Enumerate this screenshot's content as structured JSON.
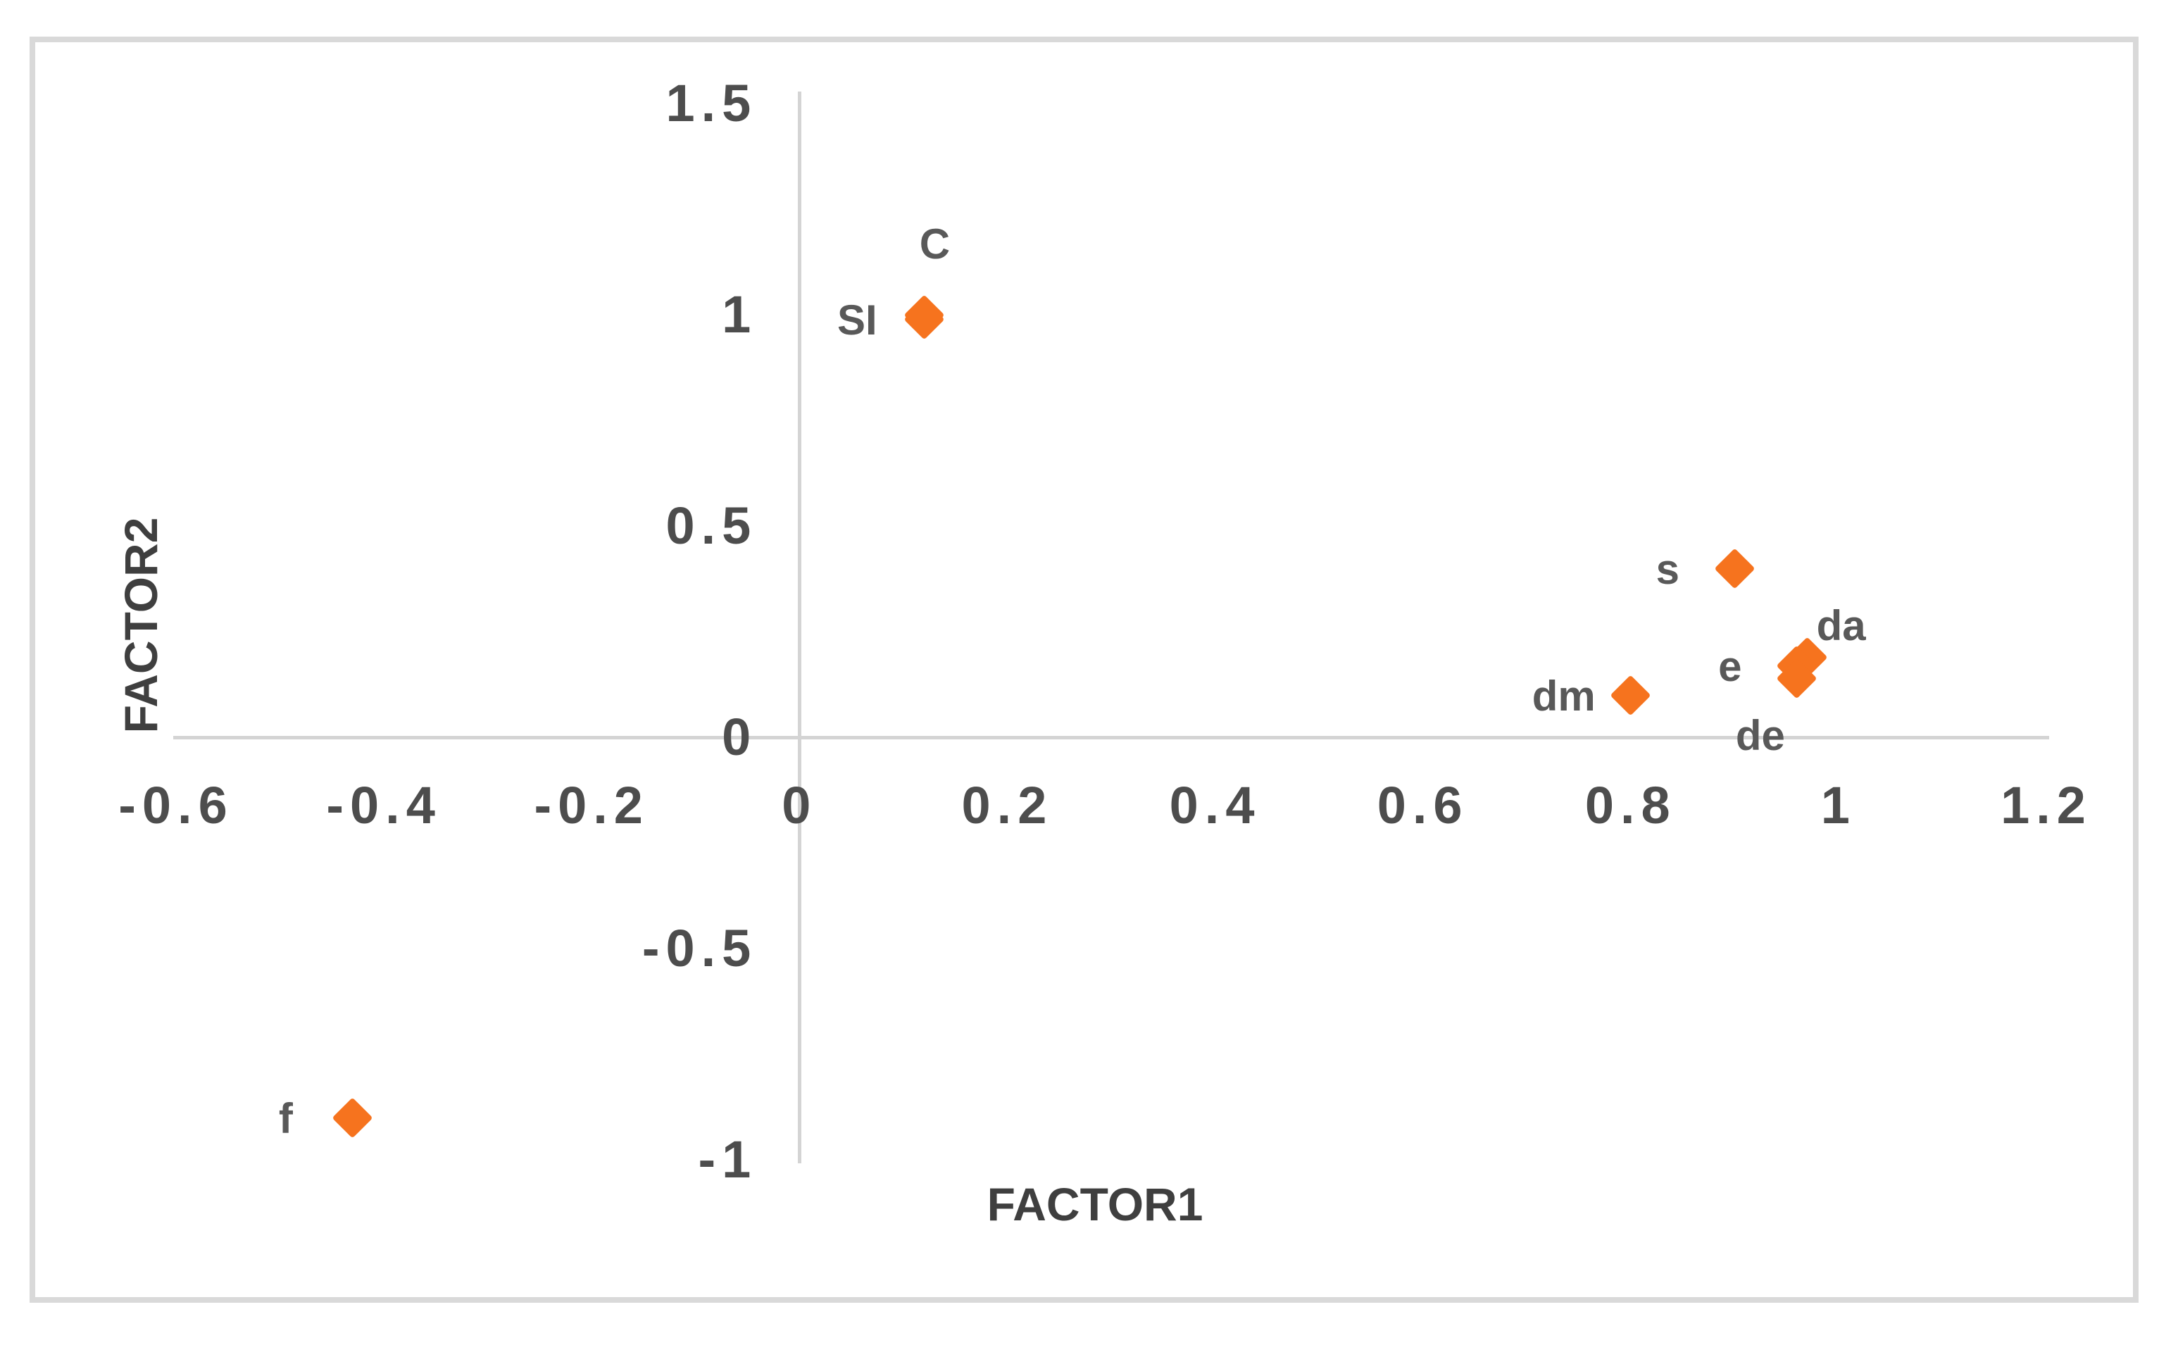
{
  "chart_data": {
    "type": "scatter",
    "title": "",
    "xlabel": "FACTOR1",
    "ylabel": "FACTOR2",
    "xlim": [
      -0.6,
      1.2
    ],
    "ylim": [
      -1,
      1.5
    ],
    "x_ticks": [
      {
        "value": -0.6,
        "label": "-0.6"
      },
      {
        "value": -0.4,
        "label": "-0.4"
      },
      {
        "value": -0.2,
        "label": "-0.2"
      },
      {
        "value": 0,
        "label": "0"
      },
      {
        "value": 0.2,
        "label": "0.2"
      },
      {
        "value": 0.4,
        "label": "0.4"
      },
      {
        "value": 0.6,
        "label": "0.6"
      },
      {
        "value": 0.8,
        "label": "0.8"
      },
      {
        "value": 1,
        "label": "1"
      },
      {
        "value": 1.2,
        "label": "1.2"
      }
    ],
    "y_ticks": [
      {
        "value": 1.5,
        "label": "1.5"
      },
      {
        "value": 1,
        "label": "1"
      },
      {
        "value": 0.5,
        "label": "0.5"
      },
      {
        "value": 0,
        "label": "0"
      },
      {
        "value": -0.5,
        "label": "-0.5"
      },
      {
        "value": -1,
        "label": "-1"
      }
    ],
    "grid": false,
    "legend": false,
    "marker": {
      "shape": "diamond",
      "color": "#F6731E"
    },
    "points": [
      {
        "label": "C",
        "x": 0.12,
        "y": 1.0,
        "label_placement": "above"
      },
      {
        "label": "SI",
        "x": 0.12,
        "y": 0.99,
        "label_placement": "left"
      },
      {
        "label": "s",
        "x": 0.9,
        "y": 0.4,
        "label_placement": "left"
      },
      {
        "label": "da",
        "x": 0.97,
        "y": 0.19,
        "label_placement": "above-right"
      },
      {
        "label": "e",
        "x": 0.96,
        "y": 0.17,
        "label_placement": "left"
      },
      {
        "label": "de",
        "x": 0.96,
        "y": 0.14,
        "label_placement": "below-left"
      },
      {
        "label": "dm",
        "x": 0.8,
        "y": 0.1,
        "label_placement": "left"
      },
      {
        "label": "f",
        "x": -0.43,
        "y": -0.9,
        "label_placement": "left"
      }
    ],
    "colors": {
      "axis_line": "#D4D4D4",
      "frame_border": "#D9D9D9",
      "tick_text": "#4D4D4D",
      "point_label_text": "#595959",
      "axis_title_text": "#3F3F3F"
    }
  }
}
